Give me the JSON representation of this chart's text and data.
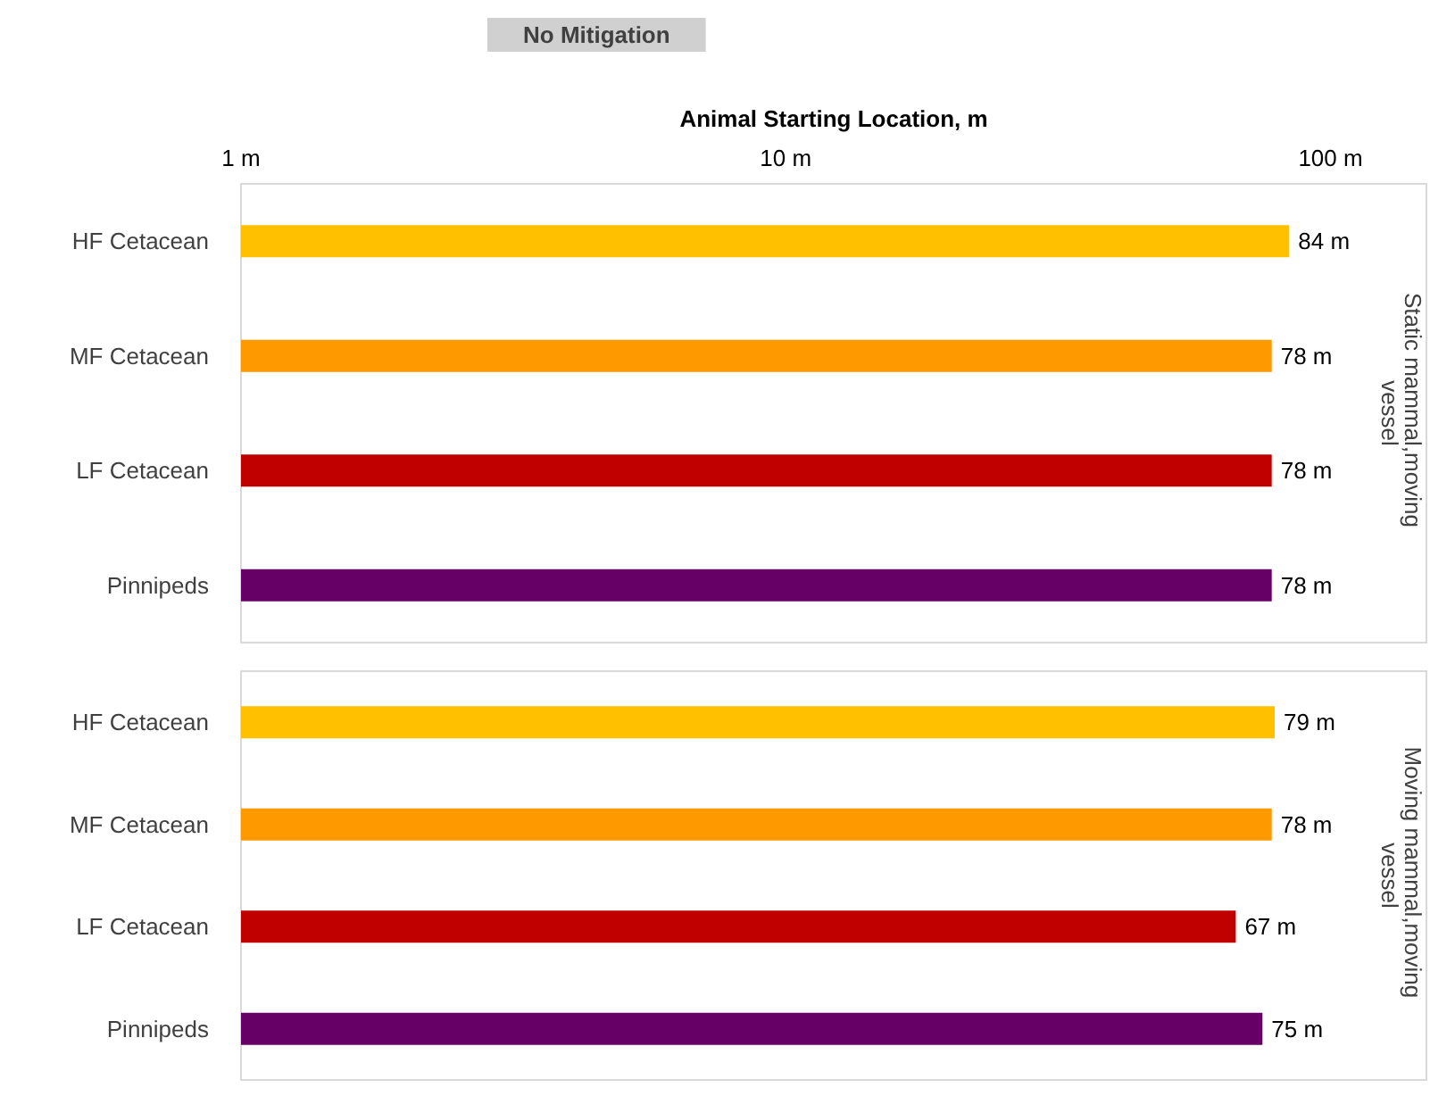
{
  "chart_data": [
    {
      "type": "bar",
      "orientation": "horizontal",
      "title": "No Mitigation",
      "xlabel": "Animal Starting Location, m",
      "ylabel": "Static mammal,moving vessel",
      "log": "x",
      "grid": false,
      "xlim": [
        1,
        150
      ],
      "xticks": [
        {
          "value": 1,
          "label": "1 m"
        },
        {
          "value": 10,
          "label": "10 m"
        },
        {
          "value": 100,
          "label": "100 m"
        }
      ],
      "categories": [
        "HF Cetacean",
        "MF Cetacean",
        "LF Cetacean",
        "Pinnipeds"
      ],
      "values": [
        84,
        78,
        78,
        78
      ],
      "value_labels": [
        "84 m",
        "78 m",
        "78 m",
        "78 m"
      ],
      "colors": [
        "#ffc000",
        "#ff9900",
        "#c00000",
        "#660066"
      ]
    },
    {
      "type": "bar",
      "orientation": "horizontal",
      "ylabel": "Moving mammal,moving vessel",
      "log": "x",
      "grid": false,
      "tick_labels": "y",
      "xlim": [
        1,
        150
      ],
      "categories": [
        "HF Cetacean",
        "MF Cetacean",
        "LF Cetacean",
        "Pinnipeds"
      ],
      "values": [
        79,
        78,
        67,
        75
      ],
      "value_labels": [
        "79 m",
        "78 m",
        "67 m",
        "75 m"
      ],
      "colors": [
        "#ffc000",
        "#ff9900",
        "#c00000",
        "#660066"
      ]
    }
  ]
}
